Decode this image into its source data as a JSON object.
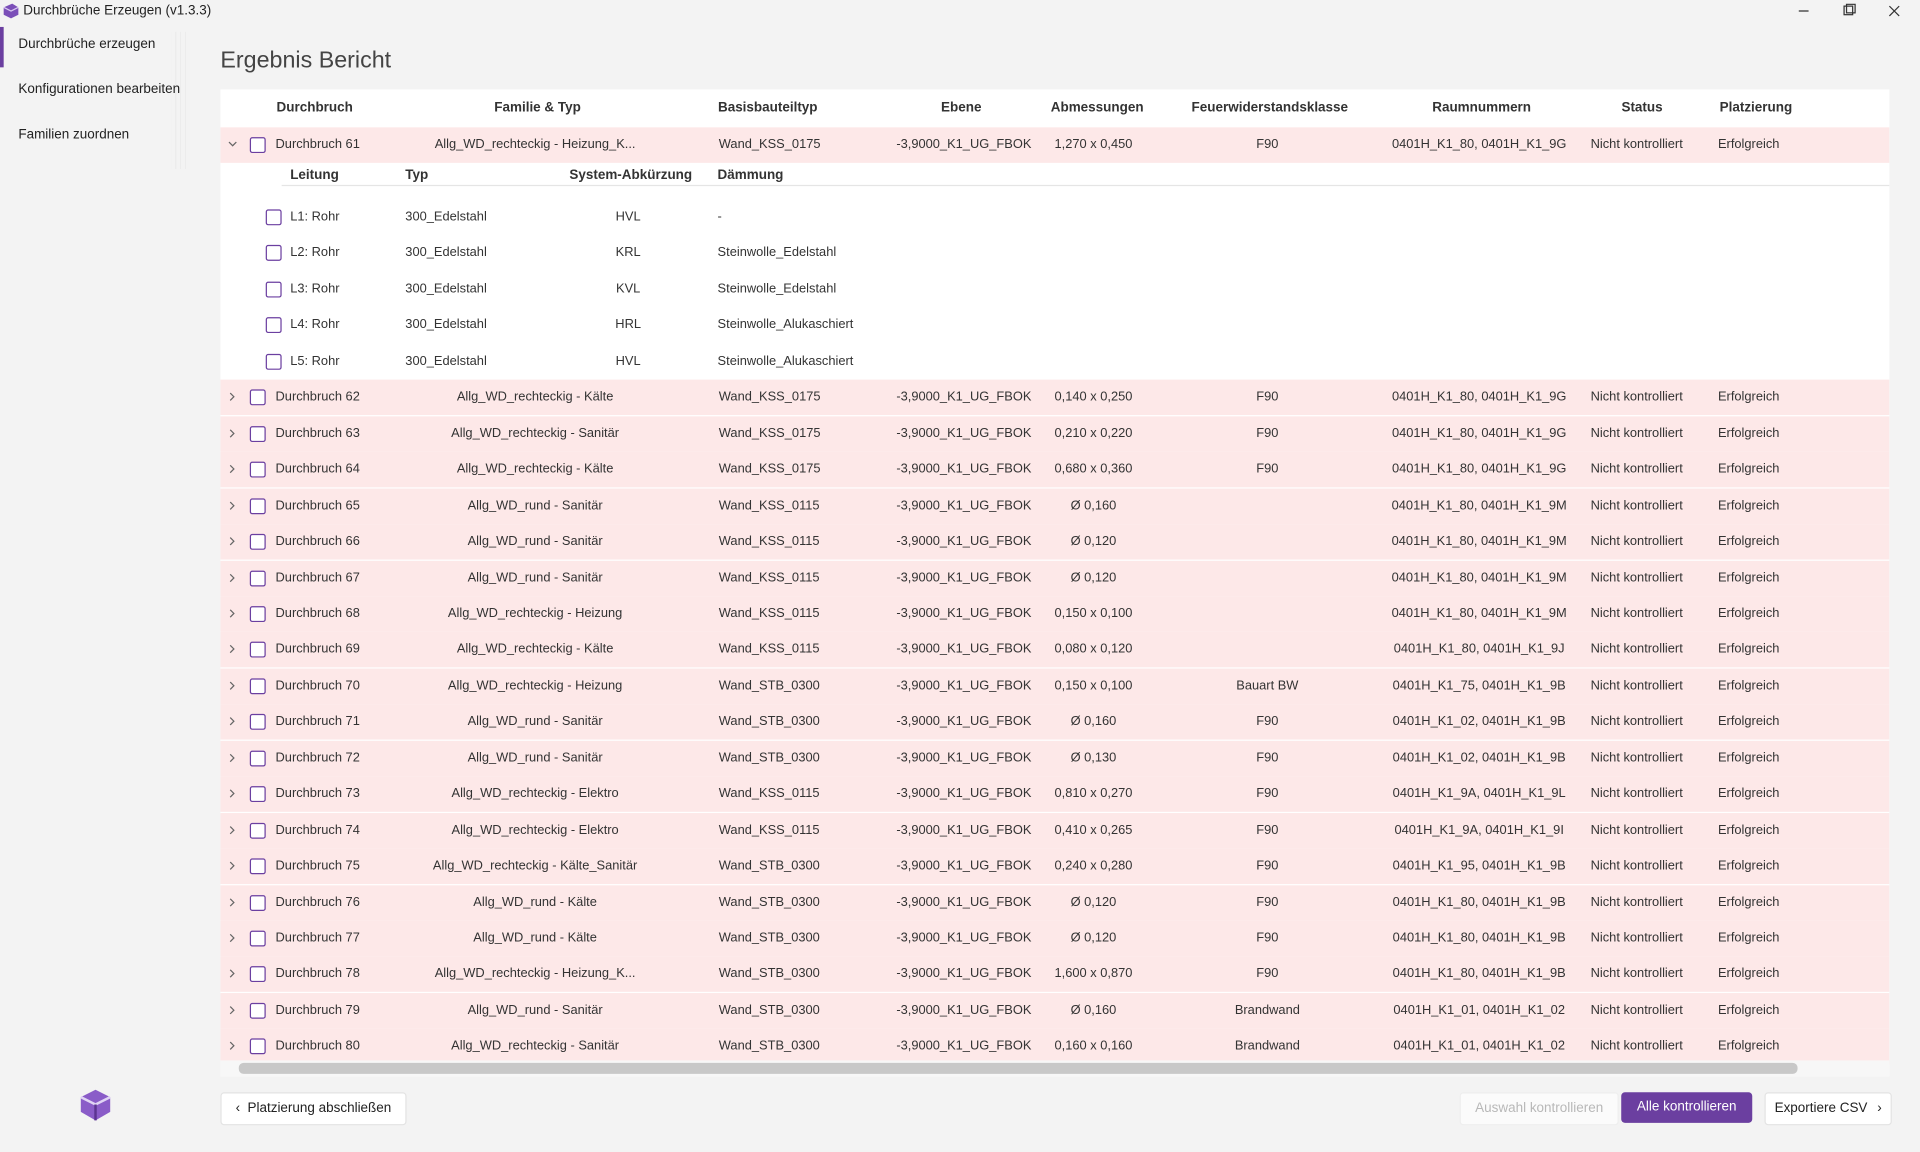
{
  "window": {
    "title": "Durchbrüche Erzeugen (v1.3.3)"
  },
  "sidebar": {
    "items": [
      "Durchbrüche erzeugen",
      "Konfigurationen bearbeiten",
      "Familien zuordnen"
    ]
  },
  "header": {
    "title": "Ergebnis Bericht"
  },
  "table": {
    "columns": [
      "Durchbruch",
      "Familie & Typ",
      "Basisbauteiltyp",
      "Ebene",
      "Abmessungen",
      "Feuerwiderstandsklasse",
      "Raumnummern",
      "Status",
      "Platzierung"
    ],
    "rows": [
      [
        "Durchbruch 61",
        "Allg_WD_rechteckig - Heizung_K...",
        "Wand_KSS_0175",
        "-3,9000_K1_UG_FBOK",
        "1,270 x 0,450",
        "F90",
        "0401H_K1_80, 0401H_K1_9G",
        "Nicht kontrolliert",
        "Erfolgreich"
      ],
      [
        "Durchbruch 62",
        "Allg_WD_rechteckig - Kälte",
        "Wand_KSS_0175",
        "-3,9000_K1_UG_FBOK",
        "0,140 x 0,250",
        "F90",
        "0401H_K1_80, 0401H_K1_9G",
        "Nicht kontrolliert",
        "Erfolgreich"
      ],
      [
        "Durchbruch 63",
        "Allg_WD_rechteckig - Sanitär",
        "Wand_KSS_0175",
        "-3,9000_K1_UG_FBOK",
        "0,210 x 0,220",
        "F90",
        "0401H_K1_80, 0401H_K1_9G",
        "Nicht kontrolliert",
        "Erfolgreich"
      ],
      [
        "Durchbruch 64",
        "Allg_WD_rechteckig - Kälte",
        "Wand_KSS_0175",
        "-3,9000_K1_UG_FBOK",
        "0,680 x 0,360",
        "F90",
        "0401H_K1_80, 0401H_K1_9G",
        "Nicht kontrolliert",
        "Erfolgreich"
      ],
      [
        "Durchbruch 65",
        "Allg_WD_rund - Sanitär",
        "Wand_KSS_0115",
        "-3,9000_K1_UG_FBOK",
        "Ø 0,160",
        null,
        "0401H_K1_80, 0401H_K1_9M",
        "Nicht kontrolliert",
        "Erfolgreich"
      ],
      [
        "Durchbruch 66",
        "Allg_WD_rund - Sanitär",
        "Wand_KSS_0115",
        "-3,9000_K1_UG_FBOK",
        "Ø 0,120",
        null,
        "0401H_K1_80, 0401H_K1_9M",
        "Nicht kontrolliert",
        "Erfolgreich"
      ],
      [
        "Durchbruch 67",
        "Allg_WD_rund - Sanitär",
        "Wand_KSS_0115",
        "-3,9000_K1_UG_FBOK",
        "Ø 0,120",
        null,
        "0401H_K1_80, 0401H_K1_9M",
        "Nicht kontrolliert",
        "Erfolgreich"
      ],
      [
        "Durchbruch 68",
        "Allg_WD_rechteckig - Heizung",
        "Wand_KSS_0115",
        "-3,9000_K1_UG_FBOK",
        "0,150 x 0,100",
        null,
        "0401H_K1_80, 0401H_K1_9M",
        "Nicht kontrolliert",
        "Erfolgreich"
      ],
      [
        "Durchbruch 69",
        "Allg_WD_rechteckig - Kälte",
        "Wand_KSS_0115",
        "-3,9000_K1_UG_FBOK",
        "0,080 x 0,120",
        null,
        "0401H_K1_80, 0401H_K1_9J",
        "Nicht kontrolliert",
        "Erfolgreich"
      ],
      [
        "Durchbruch 70",
        "Allg_WD_rechteckig - Heizung",
        "Wand_STB_0300",
        "-3,9000_K1_UG_FBOK",
        "0,150 x 0,100",
        "Bauart BW",
        "0401H_K1_75, 0401H_K1_9B",
        "Nicht kontrolliert",
        "Erfolgreich"
      ],
      [
        "Durchbruch 71",
        "Allg_WD_rund - Sanitär",
        "Wand_STB_0300",
        "-3,9000_K1_UG_FBOK",
        "Ø 0,160",
        "F90",
        "0401H_K1_02, 0401H_K1_9B",
        "Nicht kontrolliert",
        "Erfolgreich"
      ],
      [
        "Durchbruch 72",
        "Allg_WD_rund - Sanitär",
        "Wand_STB_0300",
        "-3,9000_K1_UG_FBOK",
        "Ø 0,130",
        "F90",
        "0401H_K1_02, 0401H_K1_9B",
        "Nicht kontrolliert",
        "Erfolgreich"
      ],
      [
        "Durchbruch 73",
        "Allg_WD_rechteckig - Elektro",
        "Wand_KSS_0115",
        "-3,9000_K1_UG_FBOK",
        "0,810 x 0,270",
        "F90",
        "0401H_K1_9A, 0401H_K1_9L",
        "Nicht kontrolliert",
        "Erfolgreich"
      ],
      [
        "Durchbruch 74",
        "Allg_WD_rechteckig - Elektro",
        "Wand_KSS_0115",
        "-3,9000_K1_UG_FBOK",
        "0,410 x 0,265",
        "F90",
        "0401H_K1_9A, 0401H_K1_9I",
        "Nicht kontrolliert",
        "Erfolgreich"
      ],
      [
        "Durchbruch 75",
        "Allg_WD_rechteckig - Kälte_Sanitär",
        "Wand_STB_0300",
        "-3,9000_K1_UG_FBOK",
        "0,240 x 0,280",
        "F90",
        "0401H_K1_95, 0401H_K1_9B",
        "Nicht kontrolliert",
        "Erfolgreich"
      ],
      [
        "Durchbruch 76",
        "Allg_WD_rund - Kälte",
        "Wand_STB_0300",
        "-3,9000_K1_UG_FBOK",
        "Ø 0,120",
        "F90",
        "0401H_K1_80, 0401H_K1_9B",
        "Nicht kontrolliert",
        "Erfolgreich"
      ],
      [
        "Durchbruch 77",
        "Allg_WD_rund - Kälte",
        "Wand_STB_0300",
        "-3,9000_K1_UG_FBOK",
        "Ø 0,120",
        "F90",
        "0401H_K1_80, 0401H_K1_9B",
        "Nicht kontrolliert",
        "Erfolgreich"
      ],
      [
        "Durchbruch 78",
        "Allg_WD_rechteckig - Heizung_K...",
        "Wand_STB_0300",
        "-3,9000_K1_UG_FBOK",
        "1,600 x 0,870",
        "F90",
        "0401H_K1_80, 0401H_K1_9B",
        "Nicht kontrolliert",
        "Erfolgreich"
      ],
      [
        "Durchbruch 79",
        "Allg_WD_rund - Sanitär",
        "Wand_STB_0300",
        "-3,9000_K1_UG_FBOK",
        "Ø 0,160",
        "Brandwand",
        "0401H_K1_01, 0401H_K1_02",
        "Nicht kontrolliert",
        "Erfolgreich"
      ],
      [
        "Durchbruch 80",
        "Allg_WD_rechteckig - Sanitär",
        "Wand_STB_0300",
        "-3,9000_K1_UG_FBOK",
        "0,160 x 0,160",
        "Brandwand",
        "0401H_K1_01, 0401H_K1_02",
        "Nicht kontrolliert",
        "Erfolgreich"
      ]
    ],
    "details": {
      "columns": [
        "Leitung",
        "Typ",
        "System-Abkürzung",
        "Dämmung"
      ],
      "rows": [
        [
          "L1: Rohr",
          "300_Edelstahl",
          "HVL",
          "-"
        ],
        [
          "L2: Rohr",
          "300_Edelstahl",
          "KRL",
          "Steinwolle_Edelstahl"
        ],
        [
          "L3: Rohr",
          "300_Edelstahl",
          "KVL",
          "Steinwolle_Edelstahl"
        ],
        [
          "L4: Rohr",
          "300_Edelstahl",
          "HRL",
          "Steinwolle_Alukaschiert"
        ],
        [
          "L5: Rohr",
          "300_Edelstahl",
          "HVL",
          "Steinwolle_Alukaschiert"
        ]
      ]
    }
  },
  "buttons": {
    "finish": "Platzierung abschließen",
    "check_selection": "Auswahl kontrollieren",
    "check_all": "Alle kontrollieren",
    "export": "Exportiere CSV"
  }
}
